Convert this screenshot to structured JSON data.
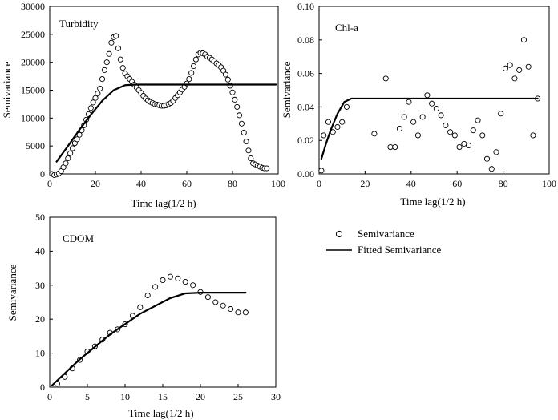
{
  "legend": {
    "items": [
      {
        "label": "Semivariance",
        "marker": "circle"
      },
      {
        "label": "Fitted Semivariance",
        "marker": "line"
      }
    ]
  },
  "chart_data": [
    {
      "id": "turbidity",
      "type": "scatter",
      "title": "Turbidity",
      "xlabel": "Time lag(1/2 h)",
      "ylabel": "Semivariance",
      "xlim": [
        0,
        100
      ],
      "ylim": [
        0,
        30000
      ],
      "xticks": [
        0,
        20,
        40,
        60,
        80,
        100
      ],
      "yticks": [
        0,
        5000,
        10000,
        15000,
        20000,
        25000,
        30000
      ],
      "ytick_labels": [
        "0",
        "5000",
        "10000",
        "15000",
        "20000",
        "25000",
        "30000"
      ],
      "series": [
        {
          "marker": "circle",
          "x": [
            1,
            2,
            3,
            4,
            5,
            6,
            7,
            8,
            9,
            10,
            11,
            12,
            13,
            14,
            15,
            16,
            17,
            18,
            19,
            20,
            21,
            22,
            23,
            24,
            25,
            26,
            27,
            28,
            29,
            30,
            31,
            32,
            33,
            34,
            35,
            36,
            37,
            38,
            39,
            40,
            41,
            42,
            43,
            44,
            45,
            46,
            47,
            48,
            49,
            50,
            51,
            52,
            53,
            54,
            55,
            56,
            57,
            58,
            59,
            60,
            61,
            62,
            63,
            64,
            65,
            66,
            67,
            68,
            69,
            70,
            71,
            72,
            73,
            74,
            75,
            76,
            77,
            78,
            79,
            80,
            81,
            82,
            83,
            84,
            85,
            86,
            87,
            88,
            89,
            90,
            91,
            92,
            93,
            94,
            95
          ],
          "y": [
            0,
            -200,
            -100,
            100,
            500,
            1200,
            1900,
            2800,
            3700,
            4600,
            5500,
            6200,
            7000,
            7800,
            8700,
            9700,
            10700,
            11800,
            12800,
            13600,
            14400,
            15300,
            17000,
            18600,
            20000,
            21500,
            23500,
            24500,
            24700,
            22500,
            20500,
            19000,
            18000,
            17500,
            17000,
            16500,
            16000,
            15500,
            15000,
            14500,
            14000,
            13500,
            13200,
            12900,
            12700,
            12500,
            12400,
            12300,
            12200,
            12200,
            12300,
            12500,
            12700,
            13100,
            13600,
            14100,
            14600,
            15100,
            15600,
            16200,
            17000,
            18100,
            19300,
            20500,
            21400,
            21700,
            21600,
            21400,
            21000,
            20800,
            20500,
            20200,
            19800,
            19500,
            19100,
            18500,
            17800,
            16900,
            15800,
            14600,
            13300,
            12000,
            10500,
            9000,
            7400,
            5800,
            4200,
            2800,
            1900,
            1700,
            1500,
            1300,
            1100,
            1000,
            1000
          ]
        },
        {
          "marker": "line",
          "x": [
            3,
            8,
            13,
            18,
            23,
            28,
            33,
            38,
            50,
            70,
            99
          ],
          "y": [
            2200,
            5000,
            7900,
            10600,
            13100,
            15000,
            15900,
            16000,
            16000,
            16000,
            16000
          ]
        }
      ]
    },
    {
      "id": "chla",
      "type": "scatter",
      "title": "Chl-a",
      "xlabel": "Time lag(1/2 h)",
      "ylabel": "Semivariance",
      "xlim": [
        0,
        100
      ],
      "ylim": [
        0,
        0.1
      ],
      "xticks": [
        0,
        20,
        40,
        60,
        80,
        100
      ],
      "yticks": [
        0,
        0.02,
        0.04,
        0.06,
        0.08,
        0.1
      ],
      "ytick_labels": [
        "0.00",
        "0.02",
        "0.04",
        "0.06",
        "0.08",
        "0.10"
      ],
      "series": [
        {
          "marker": "circle",
          "x": [
            1,
            2,
            4,
            6,
            8,
            10,
            12,
            24,
            29,
            31,
            33,
            35,
            37,
            39,
            41,
            43,
            45,
            47,
            49,
            51,
            53,
            55,
            57,
            59,
            61,
            63,
            65,
            67,
            69,
            71,
            73,
            75,
            77,
            79,
            81,
            83,
            85,
            87,
            89,
            91,
            93,
            95
          ],
          "y": [
            0.002,
            0.023,
            0.031,
            0.025,
            0.028,
            0.031,
            0.04,
            0.024,
            0.057,
            0.016,
            0.016,
            0.027,
            0.034,
            0.043,
            0.031,
            0.023,
            0.034,
            0.047,
            0.042,
            0.039,
            0.035,
            0.029,
            0.025,
            0.023,
            0.016,
            0.018,
            0.017,
            0.026,
            0.032,
            0.023,
            0.009,
            0.003,
            0.013,
            0.036,
            0.063,
            0.065,
            0.057,
            0.062,
            0.08,
            0.064,
            0.023,
            0.045
          ]
        },
        {
          "marker": "line",
          "x": [
            1,
            3,
            5,
            8,
            11,
            14,
            20,
            60,
            95
          ],
          "y": [
            0.009,
            0.018,
            0.026,
            0.036,
            0.043,
            0.045,
            0.045,
            0.045,
            0.045
          ]
        }
      ]
    },
    {
      "id": "cdom",
      "type": "scatter",
      "title": "CDOM",
      "xlabel": "Time lag(1/2 h)",
      "ylabel": "Semivariance",
      "xlim": [
        0,
        30
      ],
      "ylim": [
        0,
        50
      ],
      "xticks": [
        0,
        5,
        10,
        15,
        20,
        25,
        30
      ],
      "yticks": [
        0,
        10,
        20,
        30,
        40,
        50
      ],
      "ytick_labels": [
        "0",
        "10",
        "20",
        "30",
        "40",
        "50"
      ],
      "series": [
        {
          "marker": "circle",
          "x": [
            1,
            2,
            3,
            4,
            5,
            6,
            7,
            8,
            9,
            10,
            11,
            12,
            13,
            14,
            15,
            16,
            17,
            18,
            19,
            20,
            21,
            22,
            23,
            24,
            25,
            26
          ],
          "y": [
            1,
            3,
            5.5,
            8,
            10.5,
            12,
            14,
            16,
            17,
            18.5,
            21,
            23.5,
            27,
            29.5,
            31.5,
            32.5,
            32,
            31,
            30,
            28,
            26.5,
            25,
            24,
            23,
            22,
            22
          ]
        },
        {
          "marker": "line",
          "x": [
            0.3,
            4,
            8,
            12,
            16,
            18,
            20,
            26
          ],
          "y": [
            0.5,
            8.2,
            15.5,
            21.6,
            26.2,
            27.6,
            27.8,
            27.8
          ]
        }
      ]
    }
  ]
}
